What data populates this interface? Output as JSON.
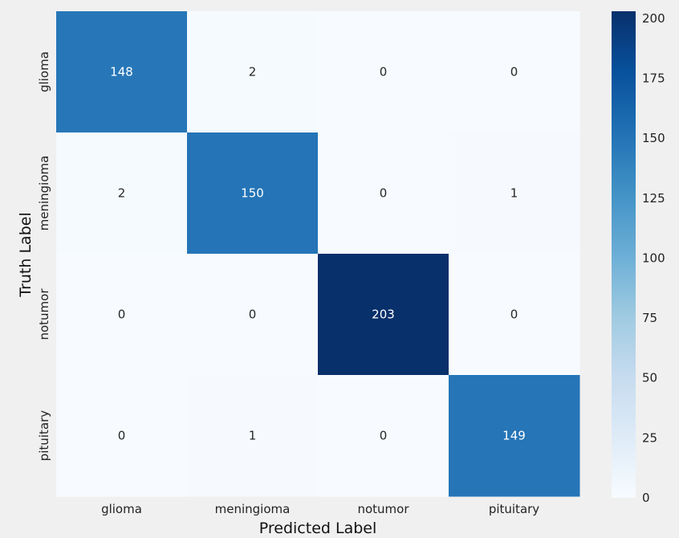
{
  "chart_data": {
    "type": "heatmap",
    "title": "",
    "xlabel": "Predicted Label",
    "ylabel": "Truth Label",
    "x_categories": [
      "glioma",
      "meningioma",
      "notumor",
      "pituitary"
    ],
    "y_categories": [
      "glioma",
      "meningioma",
      "notumor",
      "pituitary"
    ],
    "values": [
      [
        148,
        2,
        0,
        0
      ],
      [
        2,
        150,
        0,
        1
      ],
      [
        0,
        0,
        203,
        0
      ],
      [
        0,
        1,
        0,
        149
      ]
    ],
    "colormap": "Blues",
    "vmin": 0,
    "vmax": 203,
    "colorbar_ticks": [
      0,
      25,
      50,
      75,
      100,
      125,
      150,
      175,
      200
    ],
    "colorbar_labels": [
      "0",
      "25",
      "50",
      "75",
      "100",
      "125",
      "150",
      "175",
      "200"
    ]
  }
}
